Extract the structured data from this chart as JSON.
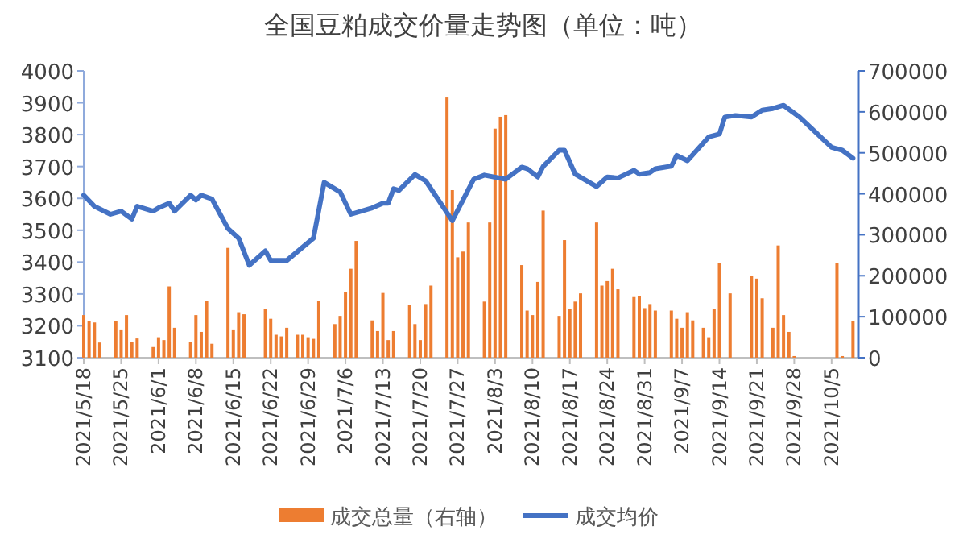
{
  "chart_data": {
    "type": "bar",
    "title": "全国豆粕成交价量走势图（单位：吨）",
    "series": [
      {
        "name": "成交总量（右轴）",
        "axis": "y2",
        "color": "#ed7d31",
        "x": [
          "2021-05-18",
          "2021-05-19",
          "2021-05-20",
          "2021-05-21",
          "2021-05-24",
          "2021-05-25",
          "2021-05-26",
          "2021-05-27",
          "2021-05-28",
          "2021-05-31",
          "2021-06-01",
          "2021-06-02",
          "2021-06-03",
          "2021-06-04",
          "2021-06-07",
          "2021-06-08",
          "2021-06-09",
          "2021-06-10",
          "2021-06-11",
          "2021-06-14",
          "2021-06-15",
          "2021-06-16",
          "2021-06-17",
          "2021-06-21",
          "2021-06-22",
          "2021-06-23",
          "2021-06-24",
          "2021-06-25",
          "2021-06-27",
          "2021-06-28",
          "2021-06-29",
          "2021-06-30",
          "2021-07-01",
          "2021-07-04",
          "2021-07-05",
          "2021-07-06",
          "2021-07-07",
          "2021-07-08",
          "2021-07-11",
          "2021-07-12",
          "2021-07-13",
          "2021-07-14",
          "2021-07-15",
          "2021-07-18",
          "2021-07-19",
          "2021-07-20",
          "2021-07-21",
          "2021-07-22",
          "2021-07-25",
          "2021-07-26",
          "2021-07-27",
          "2021-07-28",
          "2021-07-29",
          "2021-08-01",
          "2021-08-02",
          "2021-08-03",
          "2021-08-04",
          "2021-08-05",
          "2021-08-08",
          "2021-08-09",
          "2021-08-10",
          "2021-08-11",
          "2021-08-12",
          "2021-08-15",
          "2021-08-16",
          "2021-08-17",
          "2021-08-18",
          "2021-08-19",
          "2021-08-22",
          "2021-08-23",
          "2021-08-24",
          "2021-08-25",
          "2021-08-26",
          "2021-08-29",
          "2021-08-30",
          "2021-08-31",
          "2021-09-01",
          "2021-09-02",
          "2021-09-05",
          "2021-09-06",
          "2021-09-07",
          "2021-09-08",
          "2021-09-09",
          "2021-09-11",
          "2021-09-12",
          "2021-09-13",
          "2021-09-14",
          "2021-09-16",
          "2021-09-20",
          "2021-09-21",
          "2021-09-22",
          "2021-09-24",
          "2021-09-25",
          "2021-09-26",
          "2021-09-27",
          "2021-09-28",
          "2021-10-06",
          "2021-10-07",
          "2021-10-09"
        ],
        "values": [
          104000,
          89000,
          86000,
          37000,
          89000,
          69000,
          104000,
          39000,
          47000,
          26000,
          50000,
          43000,
          174000,
          73000,
          39000,
          104000,
          63000,
          138000,
          34000,
          268000,
          69000,
          111000,
          106000,
          118000,
          95000,
          56000,
          52000,
          73000,
          56000,
          56000,
          50000,
          46000,
          138000,
          82000,
          102000,
          161000,
          217000,
          285000,
          91000,
          65000,
          158000,
          43000,
          65000,
          128000,
          82000,
          43000,
          131000,
          176000,
          635000,
          409000,
          245000,
          259000,
          330000,
          137000,
          330000,
          559000,
          588000,
          592000,
          226000,
          115000,
          104000,
          185000,
          359000,
          102000,
          287000,
          119000,
          137000,
          157000,
          330000,
          176000,
          187000,
          217000,
          167000,
          148000,
          151000,
          121000,
          131000,
          115000,
          115000,
          95000,
          73000,
          111000,
          91000,
          73000,
          50000,
          119000,
          232000,
          157000,
          200000,
          193000,
          145000,
          73000,
          274000,
          104000,
          63000,
          4000,
          232000,
          4000,
          89000
        ]
      },
      {
        "name": "成交均价",
        "type": "line",
        "axis": "y",
        "color": "#4472c4",
        "x": [
          "2021-05-18",
          "2021-05-20",
          "2021-05-23",
          "2021-05-25",
          "2021-05-27",
          "2021-05-28",
          "2021-05-31",
          "2021-06-01",
          "2021-06-03",
          "2021-06-04",
          "2021-06-07",
          "2021-06-08",
          "2021-06-09",
          "2021-06-11",
          "2021-06-14",
          "2021-06-16",
          "2021-06-18",
          "2021-06-21",
          "2021-06-22",
          "2021-06-25",
          "2021-06-30",
          "2021-07-02",
          "2021-07-05",
          "2021-07-07",
          "2021-07-11",
          "2021-07-13",
          "2021-07-14",
          "2021-07-15",
          "2021-07-16",
          "2021-07-19",
          "2021-07-21",
          "2021-07-26",
          "2021-07-30",
          "2021-08-01",
          "2021-08-05",
          "2021-08-08",
          "2021-08-09",
          "2021-08-11",
          "2021-08-12",
          "2021-08-15",
          "2021-08-16",
          "2021-08-18",
          "2021-08-22",
          "2021-08-24",
          "2021-08-26",
          "2021-08-29",
          "2021-08-30",
          "2021-09-01",
          "2021-09-02",
          "2021-09-05",
          "2021-09-06",
          "2021-09-08",
          "2021-09-12",
          "2021-09-14",
          "2021-09-15",
          "2021-09-17",
          "2021-09-20",
          "2021-09-22",
          "2021-09-24",
          "2021-09-26",
          "2021-09-29",
          "2021-10-05",
          "2021-10-07",
          "2021-10-09"
        ],
        "values": [
          3610,
          3575,
          3550,
          3560,
          3535,
          3575,
          3560,
          3570,
          3585,
          3560,
          3610,
          3595,
          3610,
          3598,
          3505,
          3475,
          3390,
          3435,
          3405,
          3405,
          3475,
          3650,
          3620,
          3550,
          3570,
          3585,
          3585,
          3630,
          3625,
          3675,
          3655,
          3530,
          3660,
          3673,
          3660,
          3698,
          3693,
          3667,
          3700,
          3751,
          3751,
          3676,
          3637,
          3667,
          3664,
          3688,
          3676,
          3681,
          3693,
          3701,
          3735,
          3718,
          3793,
          3802,
          3855,
          3860,
          3855,
          3877,
          3882,
          3892,
          3855,
          3760,
          3751,
          3726
        ]
      }
    ],
    "xlim": [
      "2021-05-18",
      "2021-10-10"
    ],
    "xticks": [
      {
        "value": "2021-05-18",
        "label": "2021/5/18"
      },
      {
        "value": "2021-05-25",
        "label": "2021/5/25"
      },
      {
        "value": "2021-06-01",
        "label": "2021/6/1"
      },
      {
        "value": "2021-06-08",
        "label": "2021/6/8"
      },
      {
        "value": "2021-06-15",
        "label": "2021/6/15"
      },
      {
        "value": "2021-06-22",
        "label": "2021/6/22"
      },
      {
        "value": "2021-06-29",
        "label": "2021/6/29"
      },
      {
        "value": "2021-07-06",
        "label": "2021/7/6"
      },
      {
        "value": "2021-07-13",
        "label": "2021/7/13"
      },
      {
        "value": "2021-07-20",
        "label": "2021/7/20"
      },
      {
        "value": "2021-07-27",
        "label": "2021/7/27"
      },
      {
        "value": "2021-08-03",
        "label": "2021/8/3"
      },
      {
        "value": "2021-08-10",
        "label": "2021/8/10"
      },
      {
        "value": "2021-08-17",
        "label": "2021/8/17"
      },
      {
        "value": "2021-08-24",
        "label": "2021/8/24"
      },
      {
        "value": "2021-08-31",
        "label": "2021/8/31"
      },
      {
        "value": "2021-09-07",
        "label": "2021/9/7"
      },
      {
        "value": "2021-09-14",
        "label": "2021/9/14"
      },
      {
        "value": "2021-09-21",
        "label": "2021/9/21"
      },
      {
        "value": "2021-09-28",
        "label": "2021/9/28"
      },
      {
        "value": "2021-10-05",
        "label": "2021/10/5"
      }
    ],
    "ylim": [
      3100,
      4000
    ],
    "yticks": [
      3100,
      3200,
      3300,
      3400,
      3500,
      3600,
      3700,
      3800,
      3900,
      4000
    ],
    "y2lim": [
      0,
      700000
    ],
    "y2ticks": [
      0,
      100000,
      200000,
      300000,
      400000,
      500000,
      600000,
      700000
    ],
    "legend": "bottom"
  }
}
